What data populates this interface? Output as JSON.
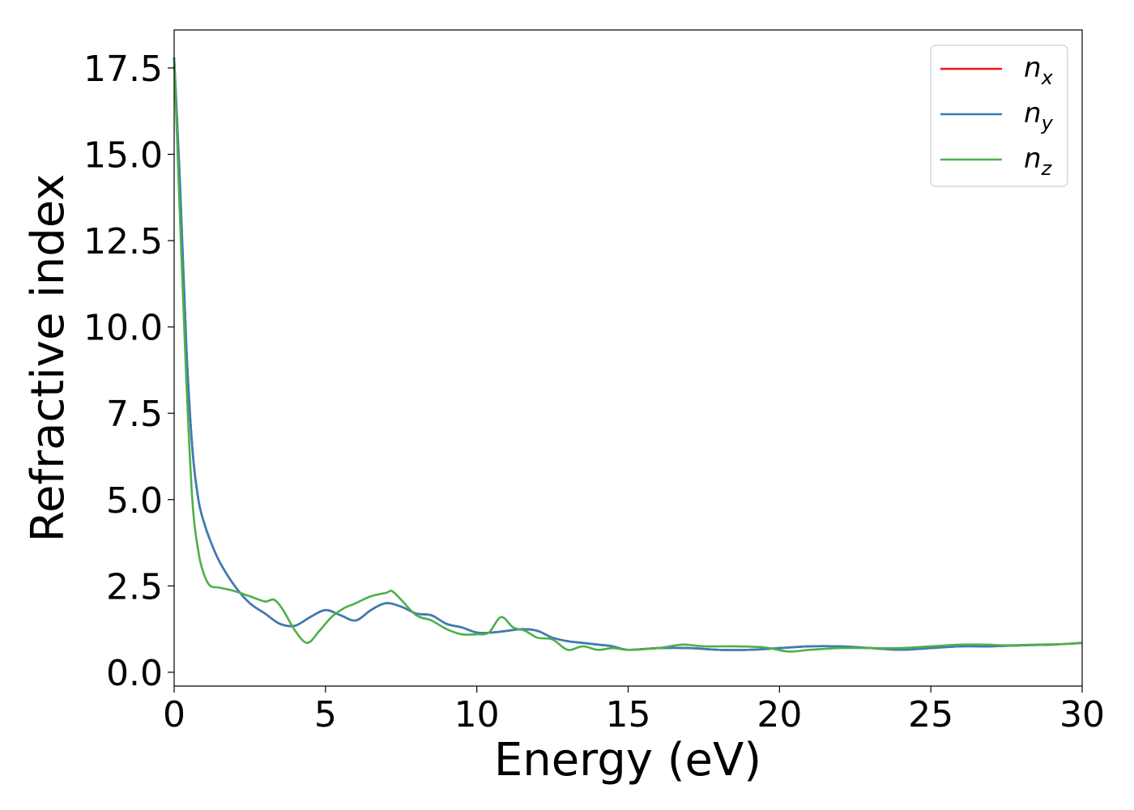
{
  "chart_data": {
    "type": "line",
    "title": "",
    "xlabel": "Energy (eV)",
    "ylabel": "Refractive index",
    "xlim": [
      0,
      30
    ],
    "ylim": [
      -0.4,
      18.6
    ],
    "xticks": [
      0,
      5,
      10,
      15,
      20,
      25,
      30
    ],
    "xtick_labels": [
      "0",
      "5",
      "10",
      "15",
      "20",
      "25",
      "30"
    ],
    "yticks": [
      0,
      2.5,
      5,
      7.5,
      10,
      12.5,
      15,
      17.5
    ],
    "ytick_labels": [
      "0.0",
      "2.5",
      "5.0",
      "7.5",
      "10.0",
      "12.5",
      "15.0",
      "17.5"
    ],
    "grid": false,
    "legend_position": "top-right",
    "series": [
      {
        "name": "n",
        "subscript": "x",
        "color": "#e41a1c",
        "x": [
          0,
          0.2,
          0.4,
          0.6,
          0.8,
          1.0,
          1.2,
          1.5,
          2.0,
          2.5,
          3.0,
          3.5,
          4.0,
          4.5,
          5.0,
          5.5,
          6.0,
          6.5,
          7.0,
          7.5,
          8.0,
          8.5,
          9.0,
          9.5,
          10.0,
          10.5,
          11.0,
          11.5,
          12.0,
          12.5,
          13.0,
          13.5,
          14.0,
          14.5,
          15.0,
          16.0,
          17.0,
          18.0,
          19.0,
          20.0,
          21.0,
          22.0,
          23.0,
          24.0,
          25.0,
          26.0,
          27.0,
          28.0,
          29.0,
          30.0
        ],
        "y": [
          17.8,
          14.0,
          9.5,
          6.5,
          5.0,
          4.3,
          3.8,
          3.2,
          2.5,
          2.0,
          1.7,
          1.4,
          1.35,
          1.6,
          1.8,
          1.65,
          1.5,
          1.8,
          2.0,
          1.9,
          1.7,
          1.65,
          1.4,
          1.3,
          1.15,
          1.15,
          1.2,
          1.25,
          1.2,
          1.0,
          0.9,
          0.85,
          0.8,
          0.75,
          0.65,
          0.7,
          0.7,
          0.65,
          0.65,
          0.7,
          0.75,
          0.75,
          0.7,
          0.65,
          0.7,
          0.75,
          0.75,
          0.78,
          0.8,
          0.85
        ]
      },
      {
        "name": "n",
        "subscript": "y",
        "color": "#377eb8",
        "x": [
          0,
          0.2,
          0.4,
          0.6,
          0.8,
          1.0,
          1.2,
          1.5,
          2.0,
          2.5,
          3.0,
          3.5,
          4.0,
          4.5,
          5.0,
          5.5,
          6.0,
          6.5,
          7.0,
          7.5,
          8.0,
          8.5,
          9.0,
          9.5,
          10.0,
          10.5,
          11.0,
          11.5,
          12.0,
          12.5,
          13.0,
          13.5,
          14.0,
          14.5,
          15.0,
          16.0,
          17.0,
          18.0,
          19.0,
          20.0,
          21.0,
          22.0,
          23.0,
          24.0,
          25.0,
          26.0,
          27.0,
          28.0,
          29.0,
          30.0
        ],
        "y": [
          17.8,
          14.0,
          9.5,
          6.5,
          5.0,
          4.3,
          3.8,
          3.2,
          2.5,
          2.0,
          1.7,
          1.4,
          1.35,
          1.6,
          1.8,
          1.65,
          1.5,
          1.8,
          2.0,
          1.9,
          1.7,
          1.65,
          1.4,
          1.3,
          1.15,
          1.15,
          1.2,
          1.25,
          1.2,
          1.0,
          0.9,
          0.85,
          0.8,
          0.75,
          0.65,
          0.7,
          0.7,
          0.65,
          0.65,
          0.7,
          0.75,
          0.75,
          0.7,
          0.65,
          0.7,
          0.75,
          0.75,
          0.78,
          0.8,
          0.85
        ]
      },
      {
        "name": "n",
        "subscript": "z",
        "color": "#4daf4a",
        "x": [
          0,
          0.2,
          0.4,
          0.6,
          0.8,
          1.0,
          1.2,
          1.5,
          2.0,
          2.5,
          3.0,
          3.3,
          3.6,
          4.0,
          4.4,
          4.8,
          5.2,
          5.6,
          6.0,
          6.5,
          7.0,
          7.2,
          7.5,
          8.0,
          8.5,
          9.0,
          9.5,
          10.0,
          10.4,
          10.8,
          11.2,
          11.6,
          12.0,
          12.5,
          13.0,
          13.5,
          14.0,
          14.5,
          15.0,
          16.0,
          16.8,
          17.5,
          18.5,
          19.5,
          20.3,
          21.0,
          22.0,
          23.0,
          24.0,
          25.0,
          26.0,
          26.8,
          27.5,
          28.5,
          29.5,
          30.0
        ],
        "y": [
          17.8,
          13.0,
          8.5,
          5.0,
          3.5,
          2.8,
          2.5,
          2.45,
          2.35,
          2.2,
          2.05,
          2.1,
          1.8,
          1.2,
          0.85,
          1.2,
          1.6,
          1.85,
          2.0,
          2.2,
          2.3,
          2.35,
          2.1,
          1.65,
          1.5,
          1.25,
          1.1,
          1.1,
          1.15,
          1.6,
          1.3,
          1.2,
          1.0,
          0.95,
          0.65,
          0.75,
          0.65,
          0.7,
          0.65,
          0.7,
          0.8,
          0.75,
          0.75,
          0.72,
          0.6,
          0.65,
          0.7,
          0.7,
          0.7,
          0.75,
          0.8,
          0.8,
          0.78,
          0.8,
          0.82,
          0.85
        ]
      }
    ]
  }
}
